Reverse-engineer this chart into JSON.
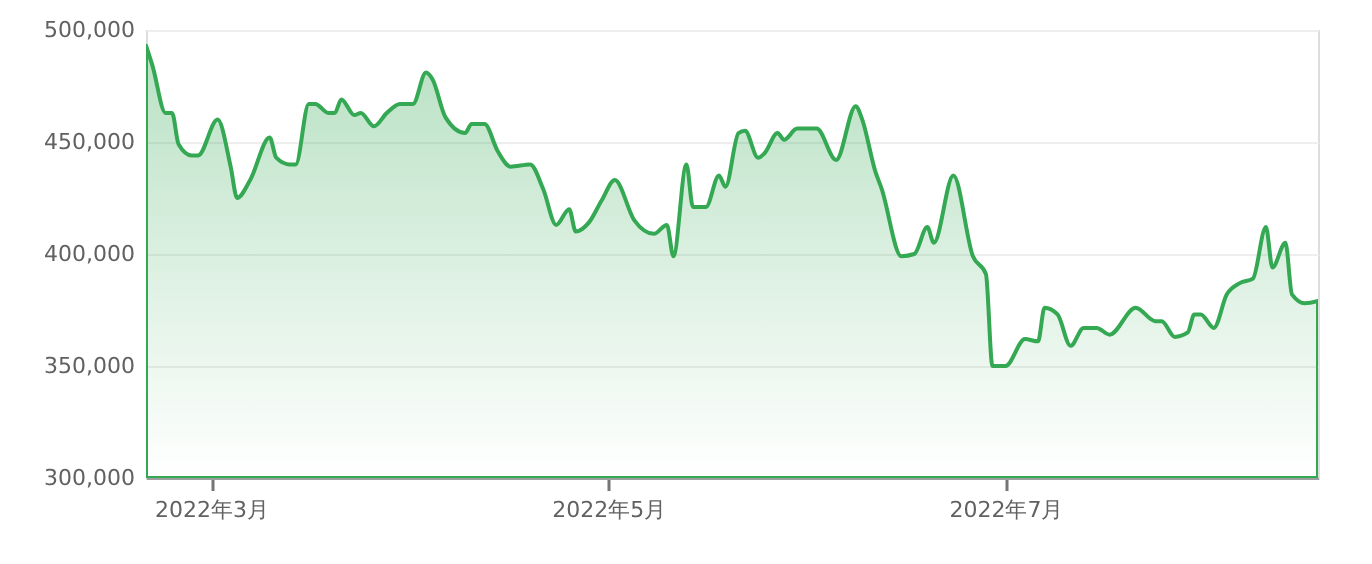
{
  "chart_data": {
    "type": "area",
    "x": [
      "2022-02-19",
      "2022-02-20",
      "2022-02-22",
      "2022-02-23",
      "2022-02-24",
      "2022-02-26",
      "2022-02-27",
      "2022-03-02",
      "2022-03-04",
      "2022-03-05",
      "2022-03-07",
      "2022-03-10",
      "2022-03-11",
      "2022-03-13",
      "2022-03-14",
      "2022-03-16",
      "2022-03-17",
      "2022-03-19",
      "2022-03-20",
      "2022-03-21",
      "2022-03-23",
      "2022-03-24",
      "2022-03-26",
      "2022-03-28",
      "2022-03-30",
      "2022-04-01",
      "2022-04-03",
      "2022-04-04",
      "2022-04-06",
      "2022-04-09",
      "2022-04-10",
      "2022-04-12",
      "2022-04-14",
      "2022-04-16",
      "2022-04-19",
      "2022-04-21",
      "2022-04-23",
      "2022-04-25",
      "2022-04-26",
      "2022-04-28",
      "2022-04-30",
      "2022-05-02",
      "2022-05-05",
      "2022-05-08",
      "2022-05-10",
      "2022-05-11",
      "2022-05-13",
      "2022-05-14",
      "2022-05-16",
      "2022-05-18",
      "2022-05-19",
      "2022-05-21",
      "2022-05-22",
      "2022-05-24",
      "2022-05-25",
      "2022-05-27",
      "2022-05-28",
      "2022-05-30",
      "2022-06-02",
      "2022-06-05",
      "2022-06-08",
      "2022-06-09",
      "2022-06-11",
      "2022-06-12",
      "2022-06-15",
      "2022-06-17",
      "2022-06-19",
      "2022-06-20",
      "2022-06-23",
      "2022-06-26",
      "2022-06-28",
      "2022-06-29",
      "2022-07-01",
      "2022-07-04",
      "2022-07-06",
      "2022-07-07",
      "2022-07-09",
      "2022-07-11",
      "2022-07-13",
      "2022-07-15",
      "2022-07-17",
      "2022-07-21",
      "2022-07-24",
      "2022-07-25",
      "2022-07-27",
      "2022-07-29",
      "2022-07-30",
      "2022-07-31",
      "2022-08-02",
      "2022-08-04",
      "2022-08-06",
      "2022-08-08",
      "2022-08-10",
      "2022-08-11",
      "2022-08-13",
      "2022-08-14",
      "2022-08-16",
      "2022-08-18"
    ],
    "series": [
      {
        "color": "#34a853",
        "values": [
          493000,
          484000,
          463000,
          463000,
          449000,
          444000,
          444000,
          460000,
          439000,
          425000,
          433000,
          452000,
          443000,
          440000,
          440000,
          467000,
          467000,
          463000,
          463000,
          469000,
          462000,
          463000,
          457000,
          463000,
          467000,
          467000,
          481000,
          478000,
          461000,
          454000,
          458000,
          458000,
          446000,
          439000,
          440000,
          429000,
          413000,
          420000,
          410000,
          414000,
          424000,
          433000,
          415000,
          409000,
          413000,
          399000,
          440000,
          421000,
          421000,
          435000,
          430000,
          454000,
          455000,
          443000,
          445000,
          454000,
          451000,
          456000,
          456000,
          442000,
          466000,
          460000,
          437000,
          429000,
          399000,
          400000,
          412000,
          405000,
          435000,
          399000,
          391000,
          350000,
          350000,
          362000,
          361000,
          376000,
          373000,
          359000,
          367000,
          367000,
          364000,
          376000,
          370000,
          370000,
          363000,
          365000,
          373000,
          373000,
          367000,
          382000,
          387000,
          389000,
          412000,
          394000,
          405000,
          382000,
          378000,
          379000
        ]
      }
    ],
    "xlim": [
      "2022-02-19",
      "2022-08-18"
    ],
    "xticks": [
      {
        "value": "2022-03-01",
        "label": "2022年3月"
      },
      {
        "value": "2022-05-01",
        "label": "2022年5月"
      },
      {
        "value": "2022-07-01",
        "label": "2022年7月"
      }
    ],
    "ylim": [
      300000,
      500000
    ],
    "yticks": [
      {
        "value": 300000,
        "label": "300,000"
      },
      {
        "value": 350000,
        "label": "350,000"
      },
      {
        "value": 400000,
        "label": "400,000"
      },
      {
        "value": 450000,
        "label": "450,000"
      },
      {
        "value": 500000,
        "label": "500,000"
      }
    ],
    "grid": "y"
  }
}
